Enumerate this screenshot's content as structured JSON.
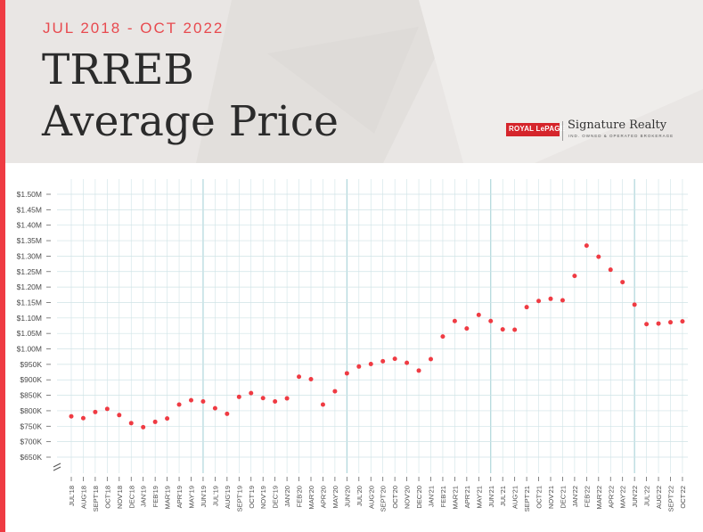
{
  "header": {
    "date_range": "JUL 2018 - OCT 2022",
    "title_line1": "TRREB",
    "title_line2": "Average Price",
    "brand_logo": "ROYAL LePAGE",
    "brand_name": "Signature Realty",
    "brand_tagline": "IND. OWNED & OPERATED BROKERAGE"
  },
  "colors": {
    "accent": "#ef3b43",
    "point": "#ef3b43",
    "grid": "#cfe3e6"
  },
  "chart_data": {
    "type": "scatter",
    "title": "TRREB Average Price",
    "ylim": [
      650,
      1500
    ],
    "yunit": "thousands of CAD",
    "y_ticks": [
      650,
      700,
      750,
      800,
      850,
      900,
      950,
      1000,
      1050,
      1100,
      1150,
      1200,
      1250,
      1300,
      1350,
      1400,
      1450,
      1500
    ],
    "y_tick_labels": [
      "$650K",
      "$700K",
      "$750K",
      "$800K",
      "$850K",
      "$900K",
      "$950K",
      "$1.00M",
      "$1.05M",
      "$1.10M",
      "$1.15M",
      "$1.20M",
      "$1.25M",
      "$1.30M",
      "$1.35M",
      "$1.40M",
      "$1.45M",
      "$1.50M"
    ],
    "grid": true,
    "axis_break": true,
    "categories": [
      "JUL'18",
      "AUG'18",
      "SEPT'18",
      "OCT'18",
      "NOV'18",
      "DEC'18",
      "JAN'19",
      "FEB'19",
      "MAR'19",
      "APR'19",
      "MAY'19",
      "JUN'19",
      "JUL'19",
      "AUG'19",
      "SEPT'19",
      "OCT'19",
      "NOV'19",
      "DEC'19",
      "JAN'20",
      "FEB'20",
      "MAR'20",
      "APR'20",
      "MAY'20",
      "JUN'20",
      "JUL'20",
      "AUG'20",
      "SEPT'20",
      "OCT'20",
      "NOV'20",
      "DEC'20",
      "JAN'21",
      "FEB'21",
      "MAR'21",
      "APR'21",
      "MAY'21",
      "JUN'21",
      "JUL'21",
      "AUG'21",
      "SEPT'21",
      "OCT'21",
      "NOV'21",
      "DEC'21",
      "JAN'22",
      "FEB'22",
      "MAR'22",
      "APR'22",
      "MAY'22",
      "JUN'22",
      "JUL'22",
      "AUG'22",
      "SEPT'22",
      "OCT'22"
    ],
    "series": [
      {
        "values": [
          782,
          776,
          796,
          806,
          786,
          760,
          747,
          764,
          775,
          820,
          834,
          830,
          808,
          790,
          845,
          857,
          841,
          830,
          840,
          910,
          902,
          820,
          863,
          921,
          943,
          951,
          960,
          968,
          955,
          930,
          967,
          1040,
          1090,
          1066,
          1110,
          1090,
          1063,
          1062,
          1135,
          1155,
          1162,
          1157,
          1236,
          1334,
          1298,
          1256,
          1216,
          1143,
          1080,
          1082,
          1086,
          1089
        ]
      }
    ]
  }
}
